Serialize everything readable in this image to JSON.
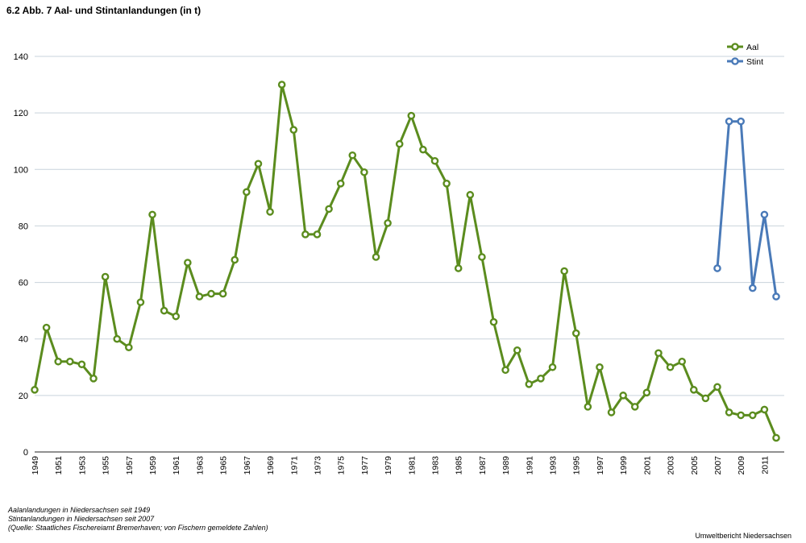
{
  "title": "6.2 Abb. 7 Aal- und Stintanlandungen (in t)",
  "notes": [
    "Aalanlandungen in Niedersachsen seit 1949",
    "Stintanlandungen in Niedersachsen seit 2007",
    "(Quelle: Staatliches Fischereiamt Bremerhaven; von Fischern gemeldete Zahlen)"
  ],
  "credit": "Umweltbericht Niedersachsen",
  "chart_data": {
    "type": "line",
    "title": "6.2 Abb. 7 Aal- und Stintanlandungen (in t)",
    "xlabel": "",
    "ylabel": "",
    "ylim": [
      0,
      140
    ],
    "yticks": [
      0,
      20,
      40,
      60,
      80,
      100,
      120,
      140
    ],
    "xlim": [
      1949,
      2012
    ],
    "xticks": [
      1949,
      1951,
      1953,
      1955,
      1957,
      1959,
      1961,
      1963,
      1965,
      1967,
      1969,
      1971,
      1973,
      1975,
      1977,
      1979,
      1981,
      1983,
      1985,
      1987,
      1989,
      1991,
      1993,
      1995,
      1997,
      1999,
      2001,
      2003,
      2005,
      2007,
      2009,
      2011
    ],
    "grid": "horizontal",
    "legend": "top-right",
    "series": [
      {
        "name": "Aal",
        "color": "#5b8c1e",
        "x": [
          1949,
          1950,
          1951,
          1952,
          1953,
          1954,
          1955,
          1956,
          1957,
          1958,
          1959,
          1960,
          1961,
          1962,
          1963,
          1964,
          1965,
          1966,
          1967,
          1968,
          1969,
          1970,
          1971,
          1972,
          1973,
          1974,
          1975,
          1976,
          1977,
          1978,
          1979,
          1980,
          1981,
          1982,
          1983,
          1984,
          1985,
          1986,
          1987,
          1988,
          1989,
          1990,
          1991,
          1992,
          1993,
          1994,
          1995,
          1996,
          1997,
          1998,
          1999,
          2000,
          2001,
          2002,
          2003,
          2004,
          2005,
          2006,
          2007,
          2008,
          2009,
          2010,
          2011,
          2012
        ],
        "values": [
          22,
          44,
          32,
          32,
          31,
          26,
          62,
          40,
          37,
          53,
          84,
          50,
          48,
          67,
          55,
          56,
          56,
          68,
          92,
          102,
          85,
          130,
          114,
          77,
          77,
          86,
          95,
          105,
          99,
          69,
          81,
          109,
          119,
          107,
          103,
          95,
          65,
          91,
          69,
          46,
          29,
          36,
          24,
          26,
          30,
          64,
          42,
          16,
          30,
          14,
          20,
          16,
          21,
          35,
          30,
          32,
          22,
          19,
          23,
          14,
          13,
          13,
          15,
          5
        ]
      },
      {
        "name": "Stint",
        "color": "#4a7ab8",
        "x": [
          2007,
          2008,
          2009,
          2010,
          2011,
          2012
        ],
        "values": [
          65,
          117,
          117,
          58,
          84,
          55
        ]
      }
    ]
  }
}
